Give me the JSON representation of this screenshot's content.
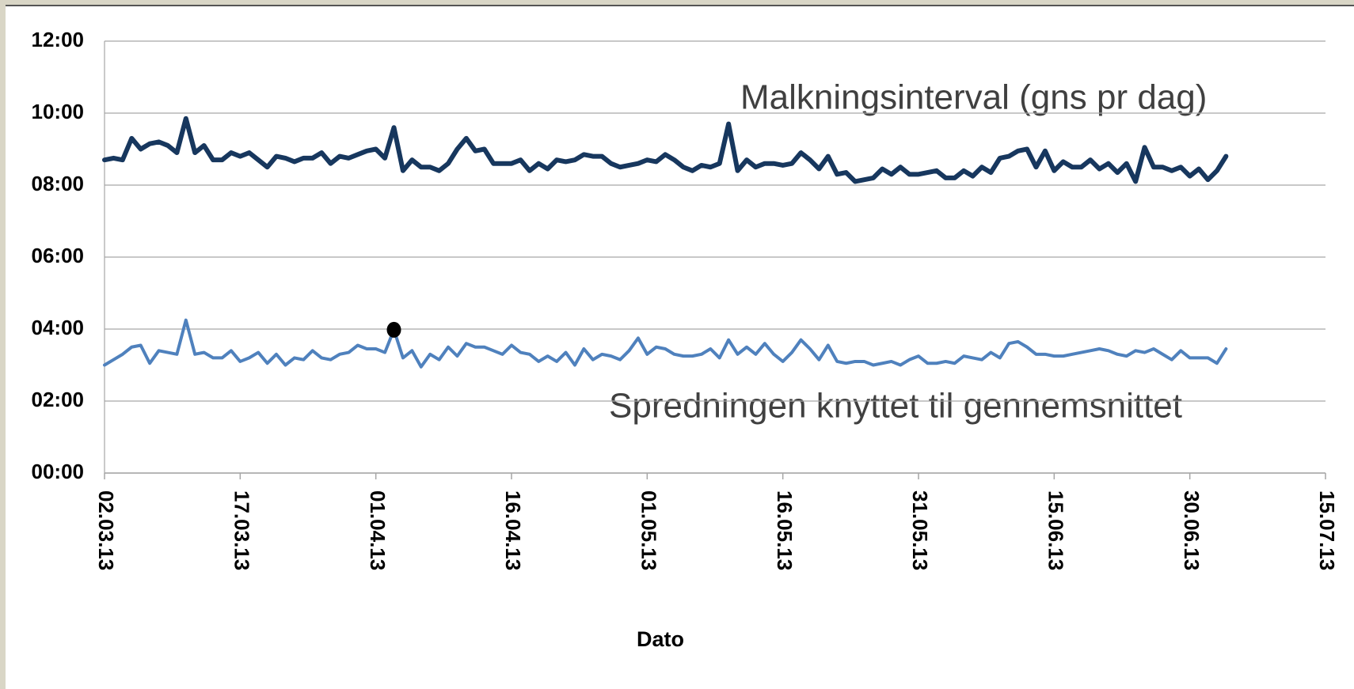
{
  "chart_data": {
    "type": "line",
    "x_label": "Dato",
    "annotations": [
      "Malkningsinterval (gns pr dag)",
      "Spredningen knyttet til gennemsnittet"
    ],
    "x": [
      "02.03.13",
      "03.03.13",
      "04.03.13",
      "05.03.13",
      "06.03.13",
      "07.03.13",
      "08.03.13",
      "09.03.13",
      "10.03.13",
      "11.03.13",
      "12.03.13",
      "13.03.13",
      "14.03.13",
      "15.03.13",
      "16.03.13",
      "17.03.13",
      "18.03.13",
      "19.03.13",
      "20.03.13",
      "21.03.13",
      "22.03.13",
      "23.03.13",
      "24.03.13",
      "25.03.13",
      "26.03.13",
      "27.03.13",
      "28.03.13",
      "29.03.13",
      "30.03.13",
      "31.03.13",
      "01.04.13",
      "02.04.13",
      "03.04.13",
      "04.04.13",
      "05.04.13",
      "06.04.13",
      "07.04.13",
      "08.04.13",
      "09.04.13",
      "10.04.13",
      "11.04.13",
      "12.04.13",
      "13.04.13",
      "14.04.13",
      "15.04.13",
      "16.04.13",
      "17.04.13",
      "18.04.13",
      "19.04.13",
      "20.04.13",
      "21.04.13",
      "22.04.13",
      "23.04.13",
      "24.04.13",
      "25.04.13",
      "26.04.13",
      "27.04.13",
      "28.04.13",
      "29.04.13",
      "30.04.13",
      "01.05.13",
      "02.05.13",
      "03.05.13",
      "04.05.13",
      "05.05.13",
      "06.05.13",
      "07.05.13",
      "08.05.13",
      "09.05.13",
      "10.05.13",
      "11.05.13",
      "12.05.13",
      "13.05.13",
      "14.05.13",
      "15.05.13",
      "16.05.13",
      "17.05.13",
      "18.05.13",
      "19.05.13",
      "20.05.13",
      "21.05.13",
      "22.05.13",
      "23.05.13",
      "24.05.13",
      "25.05.13",
      "26.05.13",
      "27.05.13",
      "28.05.13",
      "29.05.13",
      "30.05.13",
      "31.05.13",
      "01.06.13",
      "02.06.13",
      "03.06.13",
      "04.06.13",
      "05.06.13",
      "06.06.13",
      "07.06.13",
      "08.06.13",
      "09.06.13",
      "10.06.13",
      "11.06.13",
      "12.06.13",
      "13.06.13",
      "14.06.13",
      "15.06.13",
      "16.06.13",
      "17.06.13",
      "18.06.13",
      "19.06.13",
      "20.06.13",
      "21.06.13",
      "22.06.13",
      "23.06.13",
      "24.06.13",
      "25.06.13",
      "26.06.13",
      "27.06.13",
      "28.06.13",
      "29.06.13",
      "30.06.13",
      "01.07.13",
      "02.07.13",
      "03.07.13",
      "04.07.13"
    ],
    "series": [
      {
        "color": "#17375e",
        "width": 6,
        "values": [
          8.7,
          8.75,
          8.7,
          9.3,
          9.0,
          9.15,
          9.2,
          9.1,
          8.9,
          9.85,
          8.9,
          9.1,
          8.7,
          8.7,
          8.9,
          8.8,
          8.9,
          8.7,
          8.5,
          8.8,
          8.75,
          8.65,
          8.75,
          8.75,
          8.9,
          8.6,
          8.8,
          8.75,
          8.85,
          8.95,
          9.0,
          8.75,
          9.6,
          8.4,
          8.7,
          8.5,
          8.5,
          8.4,
          8.6,
          9.0,
          9.3,
          8.95,
          9.0,
          8.6,
          8.6,
          8.6,
          8.7,
          8.4,
          8.6,
          8.45,
          8.7,
          8.65,
          8.7,
          8.85,
          8.8,
          8.8,
          8.6,
          8.5,
          8.55,
          8.6,
          8.7,
          8.65,
          8.85,
          8.7,
          8.5,
          8.4,
          8.55,
          8.5,
          8.6,
          9.7,
          8.4,
          8.7,
          8.5,
          8.6,
          8.6,
          8.55,
          8.6,
          8.9,
          8.7,
          8.45,
          8.8,
          8.3,
          8.35,
          8.1,
          8.15,
          8.2,
          8.45,
          8.3,
          8.5,
          8.3,
          8.3,
          8.35,
          8.4,
          8.2,
          8.2,
          8.4,
          8.25,
          8.5,
          8.35,
          8.75,
          8.8,
          8.95,
          9.0,
          8.5,
          8.95,
          8.4,
          8.65,
          8.5,
          8.5,
          8.7,
          8.45,
          8.6,
          8.35,
          8.6,
          8.1,
          9.05,
          8.5,
          8.5,
          8.4,
          8.5,
          8.25,
          8.45,
          8.15,
          8.4,
          8.8
        ]
      },
      {
        "color": "#4f81bd",
        "width": 4,
        "marker_index": 32,
        "marker_color": "#000000",
        "values": [
          3.0,
          3.15,
          3.3,
          3.5,
          3.55,
          3.05,
          3.4,
          3.35,
          3.3,
          4.25,
          3.3,
          3.35,
          3.2,
          3.2,
          3.4,
          3.1,
          3.2,
          3.35,
          3.05,
          3.3,
          3.0,
          3.2,
          3.15,
          3.4,
          3.2,
          3.15,
          3.3,
          3.35,
          3.55,
          3.45,
          3.45,
          3.35,
          3.98,
          3.2,
          3.4,
          2.95,
          3.3,
          3.15,
          3.5,
          3.25,
          3.6,
          3.5,
          3.5,
          3.4,
          3.3,
          3.55,
          3.35,
          3.3,
          3.1,
          3.25,
          3.1,
          3.35,
          3.0,
          3.45,
          3.15,
          3.3,
          3.25,
          3.15,
          3.4,
          3.75,
          3.3,
          3.5,
          3.45,
          3.3,
          3.25,
          3.25,
          3.3,
          3.45,
          3.2,
          3.7,
          3.3,
          3.5,
          3.3,
          3.6,
          3.3,
          3.1,
          3.35,
          3.7,
          3.45,
          3.15,
          3.55,
          3.1,
          3.05,
          3.1,
          3.1,
          3.0,
          3.05,
          3.1,
          3.0,
          3.15,
          3.25,
          3.05,
          3.05,
          3.1,
          3.05,
          3.25,
          3.2,
          3.15,
          3.35,
          3.2,
          3.6,
          3.65,
          3.5,
          3.3,
          3.3,
          3.25,
          3.25,
          3.3,
          3.35,
          3.4,
          3.45,
          3.4,
          3.3,
          3.25,
          3.4,
          3.35,
          3.45,
          3.3,
          3.15,
          3.4,
          3.2,
          3.2,
          3.2,
          3.05,
          3.45
        ]
      }
    ],
    "xlim": [
      "02.03.13",
      "15.07.13"
    ],
    "xticks": [
      "02.03.13",
      "17.03.13",
      "01.04.13",
      "16.04.13",
      "01.05.13",
      "16.05.13",
      "31.05.13",
      "15.06.13",
      "30.06.13",
      "15.07.13"
    ],
    "ylim": [
      0,
      12
    ],
    "yticks": [
      {
        "value": 0,
        "label": "00:00"
      },
      {
        "value": 2,
        "label": "02:00"
      },
      {
        "value": 4,
        "label": "04:00"
      },
      {
        "value": 6,
        "label": "06:00"
      },
      {
        "value": 8,
        "label": "08:00"
      },
      {
        "value": 10,
        "label": "10:00"
      },
      {
        "value": 12,
        "label": "12:00"
      }
    ],
    "grid": true
  }
}
